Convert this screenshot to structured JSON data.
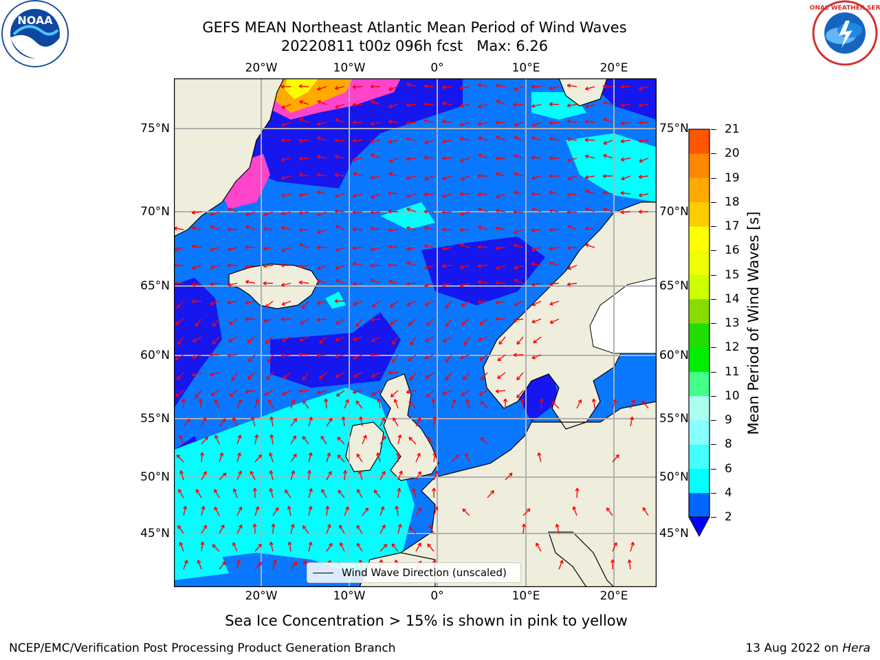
{
  "title": {
    "line1": "GEFS MEAN Northeast Atlantic Mean Period of Wind Waves",
    "line2": "20220811 t00z 096h fcst   Max: 6.26"
  },
  "axes": {
    "lon_labels": [
      "20°W",
      "10°W",
      "0°",
      "10°E",
      "20°E"
    ],
    "lat_labels": [
      "75°N",
      "70°N",
      "65°N",
      "60°N",
      "55°N",
      "50°N",
      "45°N"
    ]
  },
  "colorbar": {
    "label": "Mean Period of Wind Waves [s]",
    "ticks": [
      "2",
      "4",
      "6",
      "8",
      "9",
      "10",
      "11",
      "12",
      "13",
      "14",
      "15",
      "16",
      "17",
      "18",
      "19",
      "20",
      "21"
    ],
    "colors": [
      "#0066ff",
      "#00ffff",
      "#44ffff",
      "#88ffff",
      "#aaffee",
      "#44ff88",
      "#00ee00",
      "#22dd00",
      "#88dd00",
      "#ccff00",
      "#eeff00",
      "#ffff00",
      "#ffcc00",
      "#ffaa00",
      "#ff8800",
      "#ff5500",
      "#ff2200",
      "#ff0000"
    ],
    "extend_color": "#0000ff"
  },
  "legend": {
    "label": "Wind Wave Direction (unscaled)"
  },
  "subtitle": "Sea Ice Concentration > 15% is shown in pink to yellow",
  "footer": {
    "left": "NCEP/EMC/Verification Post Processing Product Generation Branch",
    "right_prefix": "13 Aug 2022 on ",
    "right_machine": "Hera"
  },
  "logos": {
    "left": "NOAA",
    "right": "NATIONAL WEATHER SERVICE"
  },
  "colors": {
    "land": "#efeedd",
    "ocean_base": "#0a77ff",
    "deep_blue": "#1616ee",
    "cyan": "#00ffff",
    "arrow": "#ff0000",
    "grid": "#b0b0b0"
  }
}
